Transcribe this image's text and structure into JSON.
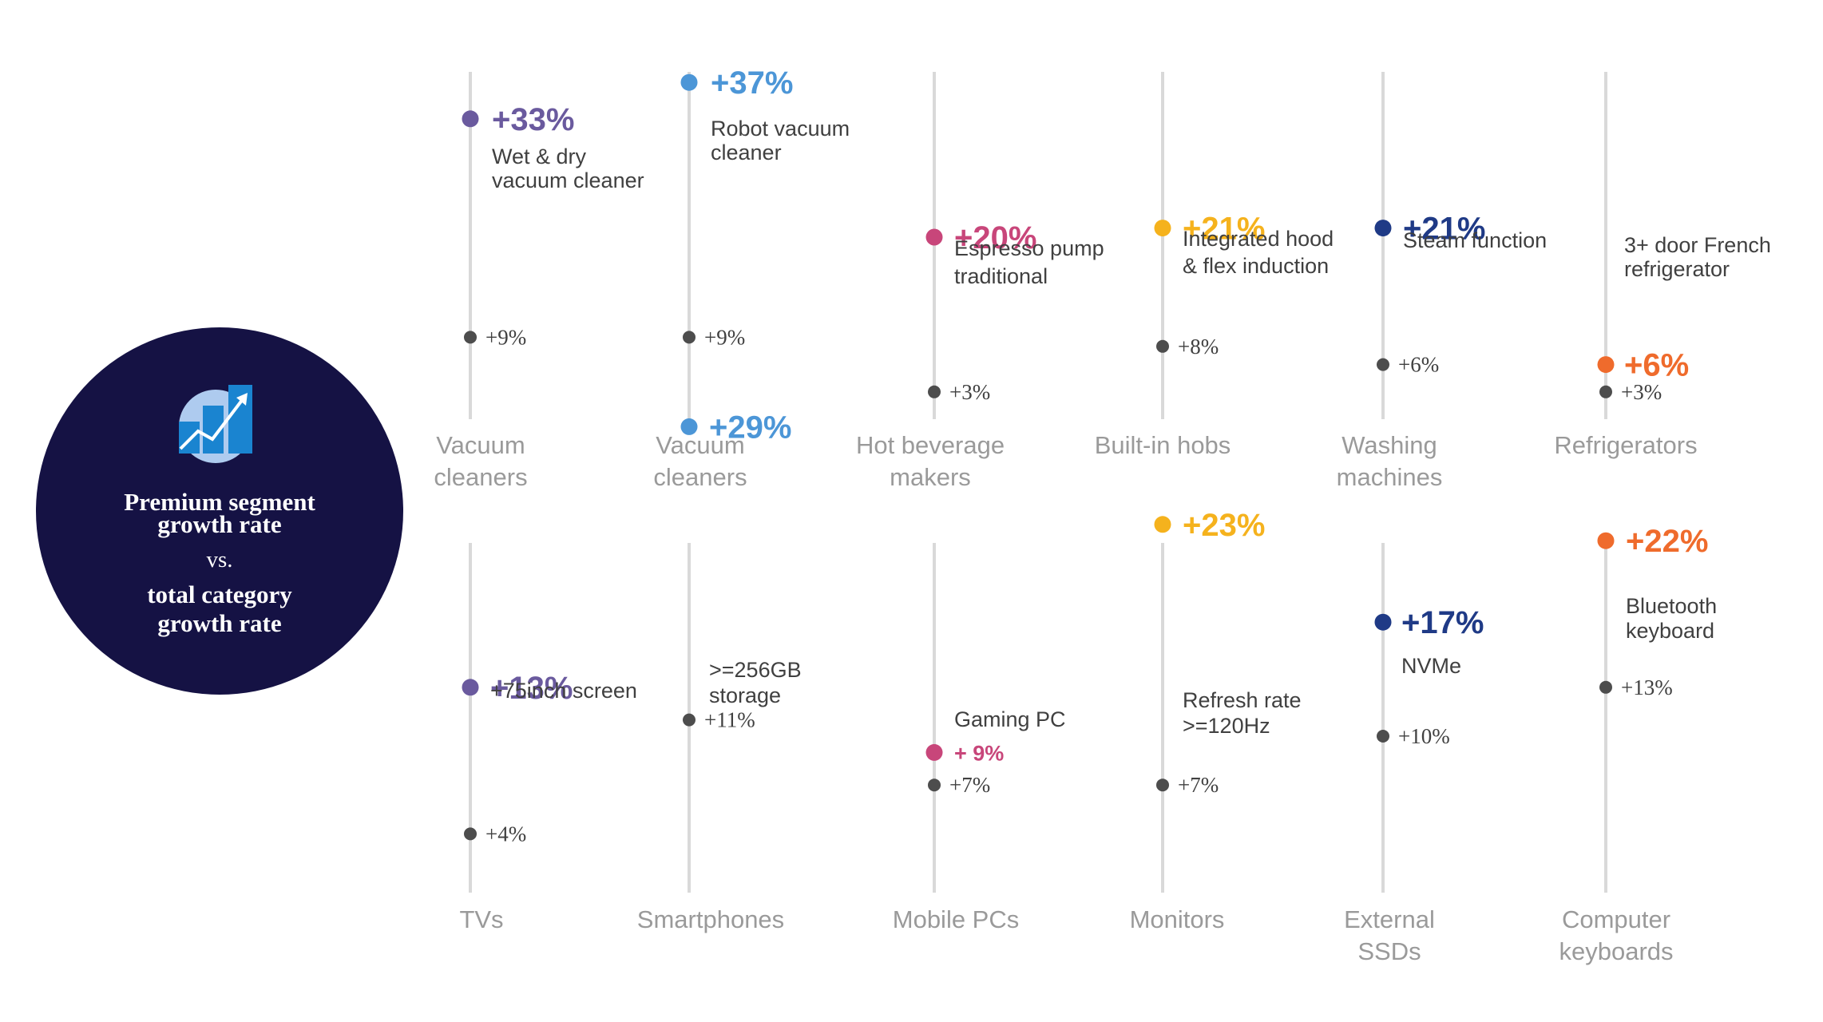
{
  "badge": {
    "line1": "Premium segment",
    "line2": "growth rate",
    "line3": "vs.",
    "line4": "total category",
    "line5": "growth rate",
    "icon": "bar-chart-trend-icon",
    "color": "#151244"
  },
  "chart_data": {
    "type": "dot-comparison",
    "title": "",
    "note": "",
    "items": [
      {
        "category": "Vacuum cleaners",
        "segment": "Wet & dry vacuum cleaner",
        "premium_label": "+33%",
        "premium": 33,
        "total_label": "+9%",
        "total": 9,
        "color": "#6a5a9e"
      },
      {
        "category": "Vacuum cleaners",
        "segment": "Robot vacuum cleaner",
        "premium_label": "+37%",
        "premium": 37,
        "total_label": "+9%",
        "total": 9,
        "color": "#4c96d7"
      },
      {
        "category": "Hot beverage makers",
        "segment": "Espresso pump traditional",
        "premium_label": "+20%",
        "premium": 20,
        "total_label": "+3%",
        "total": 3,
        "color": "#c8467a"
      },
      {
        "category": "Built-in hobs",
        "segment": "Integrated hood & flex induction",
        "premium_label": "+21%",
        "premium": 21,
        "total_label": "+8%",
        "total": 8,
        "color": "#f5b21d"
      },
      {
        "category": "Washing machines",
        "segment": "Steam function",
        "premium_label": "+21%",
        "premium": 21,
        "total_label": "+6%",
        "total": 6,
        "color": "#1f3a86"
      },
      {
        "category": "Refrigerators",
        "segment": "3+ door French refrigerator",
        "premium_label": "+6%",
        "premium": 6,
        "total_label": "+3%",
        "total": 3,
        "color": "#ef6b2c"
      },
      {
        "category": "TVs",
        "segment": "+75inch screen",
        "premium_label": "+13%",
        "premium": 13,
        "total_label": "+4%",
        "total": 4,
        "color": "#6a5a9e"
      },
      {
        "category": "Smartphones",
        "segment": ">=256GB storage",
        "premium_label": "+29%",
        "premium": 29,
        "total_label": "+11%",
        "total": 11,
        "color": "#4c96d7"
      },
      {
        "category": "Mobile PCs",
        "segment": "Gaming PC",
        "premium_label": "+ 9%",
        "premium": 9,
        "total_label": "+7%",
        "total": 7,
        "color": "#c8467a"
      },
      {
        "category": "Monitors",
        "segment": "Refresh rate >=120Hz",
        "premium_label": "+23%",
        "premium": 23,
        "total_label": "+7%",
        "total": 7,
        "color": "#f5b21d"
      },
      {
        "category": "External SSDs",
        "segment": "NVMe",
        "premium_label": "+17%",
        "premium": 17,
        "total_label": "+10%",
        "total": 10,
        "color": "#1f3a86"
      },
      {
        "category": "Computer keyboards",
        "segment": "Bluetooth keyboard",
        "premium_label": "+22%",
        "premium": 22,
        "total_label": "+13%",
        "total": 13,
        "color": "#ef6b2c"
      }
    ]
  }
}
